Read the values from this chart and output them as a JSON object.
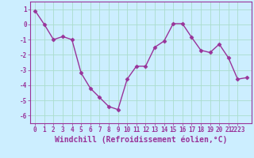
{
  "x": [
    0,
    1,
    2,
    3,
    4,
    5,
    6,
    7,
    8,
    9,
    10,
    11,
    12,
    13,
    14,
    15,
    16,
    17,
    18,
    19,
    20,
    21,
    22,
    23
  ],
  "y": [
    0.9,
    0.0,
    -1.0,
    -0.8,
    -1.0,
    -3.2,
    -4.2,
    -4.8,
    -5.4,
    -5.6,
    -3.6,
    -2.75,
    -2.75,
    -1.5,
    -1.1,
    0.05,
    0.05,
    -0.85,
    -1.7,
    -1.85,
    -1.3,
    -2.2,
    -3.6,
    -3.5
  ],
  "line_color": "#993399",
  "marker": "D",
  "markersize": 2.5,
  "linewidth": 1.0,
  "xlabel": "Windchill (Refroidissement éolien,°C)",
  "xlabel_fontsize": 7,
  "ylim": [
    -6.5,
    1.5
  ],
  "yticks": [
    -6,
    -5,
    -4,
    -3,
    -2,
    -1,
    0,
    1
  ],
  "xtick_labels": [
    "0",
    "1",
    "2",
    "3",
    "4",
    "5",
    "6",
    "7",
    "8",
    "9",
    "10",
    "11",
    "12",
    "13",
    "14",
    "15",
    "16",
    "17",
    "18",
    "19",
    "20",
    "21",
    "2223"
  ],
  "xtick_positions": [
    0,
    1,
    2,
    3,
    4,
    5,
    6,
    7,
    8,
    9,
    10,
    11,
    12,
    13,
    14,
    15,
    16,
    17,
    18,
    19,
    20,
    21,
    22
  ],
  "bg_color": "#cceeff",
  "grid_color": "#aaddcc",
  "tick_color": "#993399",
  "tick_fontsize": 5.5,
  "spine_color": "#993399"
}
